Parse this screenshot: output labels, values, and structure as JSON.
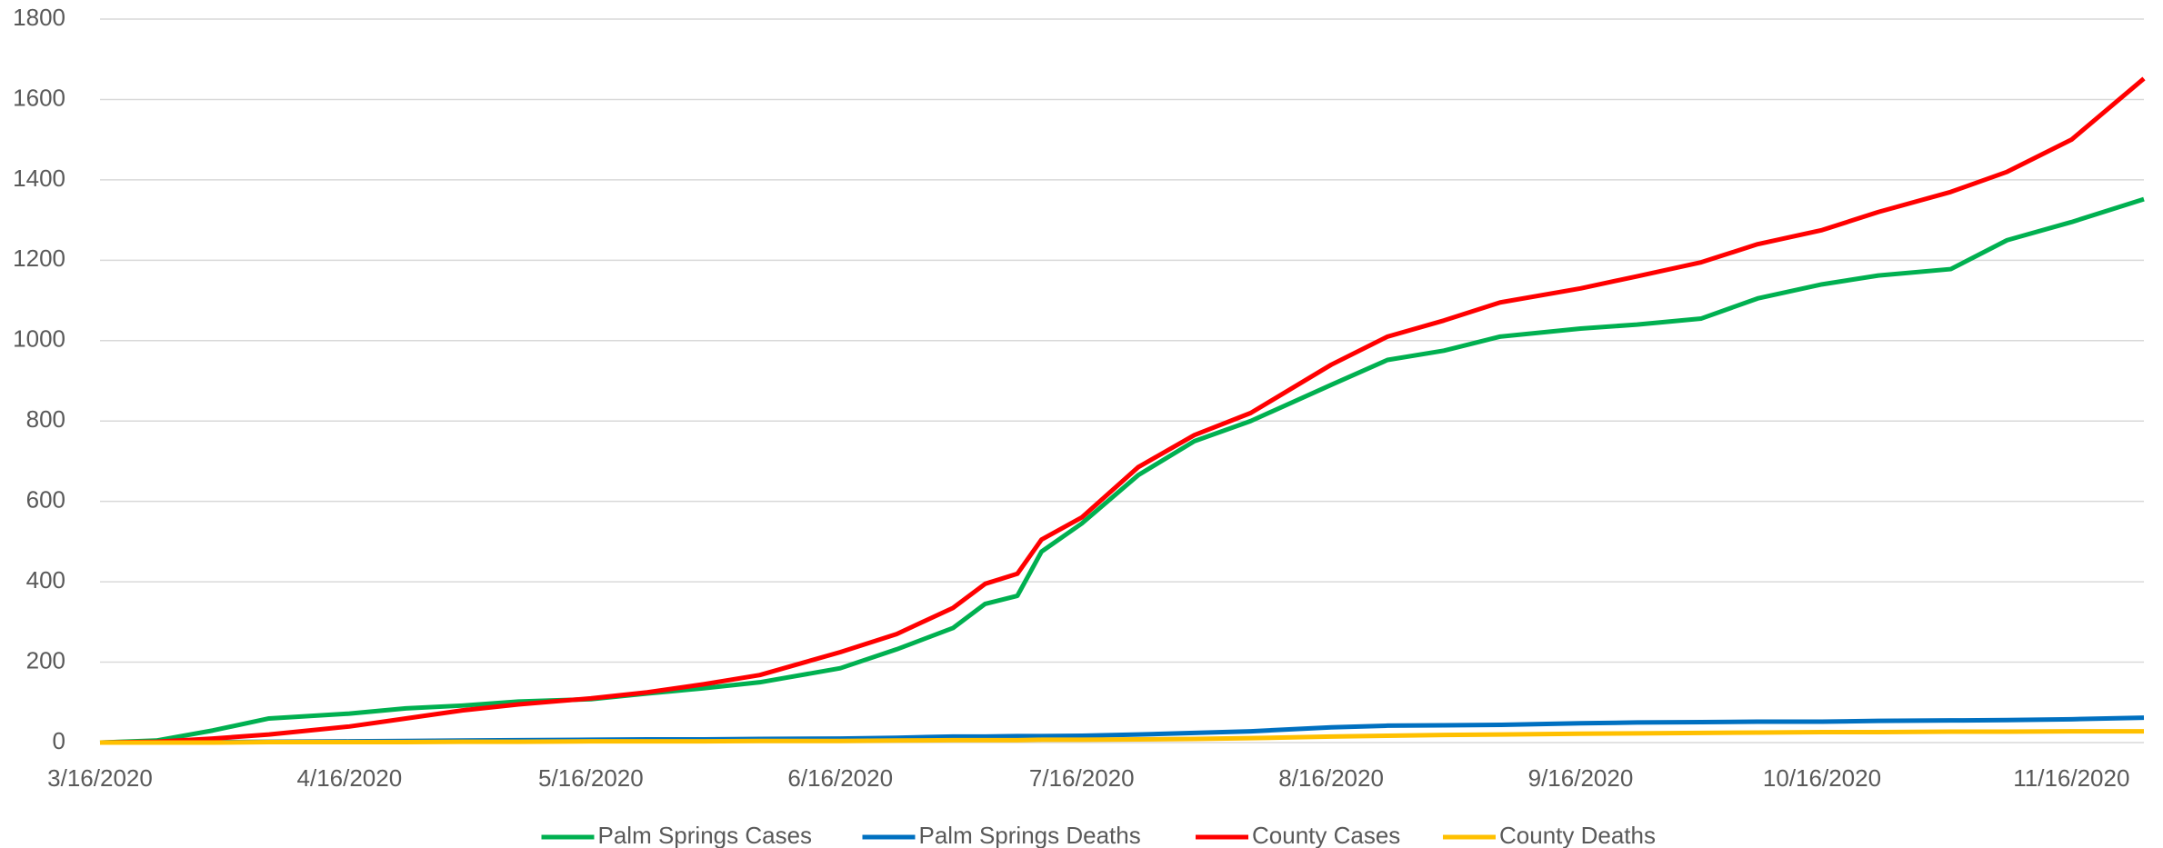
{
  "chart_data": {
    "type": "line",
    "x": [
      "3/16/2020",
      "3/23/2020",
      "3/30/2020",
      "4/6/2020",
      "4/16/2020",
      "4/23/2020",
      "4/30/2020",
      "5/7/2020",
      "5/16/2020",
      "5/23/2020",
      "5/30/2020",
      "6/6/2020",
      "6/16/2020",
      "6/23/2020",
      "6/30/2020",
      "7/4/2020",
      "7/8/2020",
      "7/11/2020",
      "7/16/2020",
      "7/23/2020",
      "7/30/2020",
      "8/6/2020",
      "8/16/2020",
      "8/23/2020",
      "8/30/2020",
      "9/6/2020",
      "9/16/2020",
      "9/23/2020",
      "10/1/2020",
      "10/8/2020",
      "10/16/2020",
      "10/23/2020",
      "11/1/2020",
      "11/8/2020",
      "11/16/2020",
      "11/25/2020"
    ],
    "series": [
      {
        "name": "Palm Springs Cases",
        "color": "#00b050",
        "values": [
          0,
          5,
          30,
          60,
          72,
          85,
          92,
          102,
          108,
          122,
          135,
          150,
          185,
          232,
          285,
          345,
          365,
          475,
          545,
          665,
          750,
          800,
          890,
          952,
          975,
          1010,
          1030,
          1040,
          1055,
          1105,
          1140,
          1162,
          1178,
          1250,
          1295,
          1352
        ]
      },
      {
        "name": "Palm Springs Deaths",
        "color": "#0070c0",
        "values": [
          0,
          0,
          1,
          2,
          3,
          4,
          5,
          6,
          7,
          8,
          8,
          9,
          10,
          12,
          15,
          15,
          16,
          16,
          17,
          20,
          24,
          28,
          38,
          42,
          43,
          44,
          48,
          50,
          51,
          52,
          52,
          54,
          55,
          56,
          58,
          62
        ]
      },
      {
        "name": "County Cases",
        "color": "#ff0000",
        "values": [
          0,
          2,
          10,
          20,
          40,
          60,
          80,
          95,
          110,
          125,
          145,
          168,
          225,
          270,
          335,
          395,
          420,
          505,
          560,
          685,
          765,
          820,
          940,
          1010,
          1050,
          1095,
          1130,
          1160,
          1195,
          1240,
          1275,
          1320,
          1370,
          1420,
          1500,
          1652
        ]
      },
      {
        "name": "County Deaths",
        "color": "#ffc000",
        "values": [
          0,
          0,
          0,
          1,
          1,
          1,
          2,
          2,
          3,
          3,
          3,
          4,
          4,
          5,
          6,
          6,
          6,
          7,
          7,
          8,
          9,
          11,
          15,
          17,
          19,
          20,
          22,
          23,
          24,
          25,
          26,
          26,
          27,
          27,
          28,
          28
        ]
      }
    ],
    "xticks": [
      "3/16/2020",
      "4/16/2020",
      "5/16/2020",
      "6/16/2020",
      "7/16/2020",
      "8/16/2020",
      "9/16/2020",
      "10/16/2020",
      "11/16/2020"
    ],
    "ylim": [
      0,
      1800
    ],
    "yticks": [
      0,
      200,
      400,
      600,
      800,
      1000,
      1200,
      1400,
      1600,
      1800
    ],
    "grid": true,
    "legend": "bottom"
  }
}
